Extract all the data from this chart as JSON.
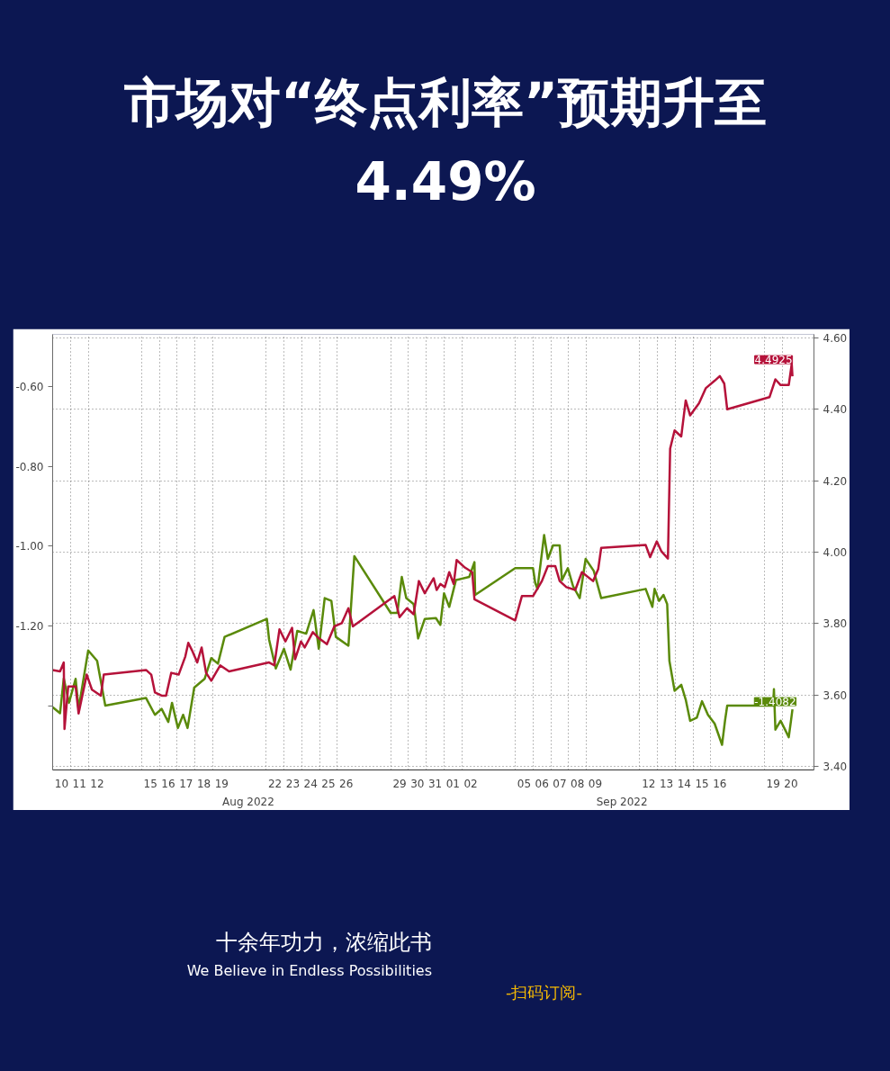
{
  "chart_data": {
    "type": "line",
    "title": "市场对“终点利率”预期升至4.49%",
    "annotations": [
      "Aug 2022",
      "Sep 2022",
      "十余年功力，浓缩此书",
      "We Believe in Endless Possibilities",
      "-扫码订阅-"
    ],
    "xlim": [
      "2022-08-10T00:00",
      "2022-09-21T19:00"
    ],
    "xticks": [
      {
        "value": "2022-08-10T12:00",
        "label": "10"
      },
      {
        "value": "2022-08-11T12:00",
        "label": "11"
      },
      {
        "value": "2022-08-12T12:00",
        "label": "12"
      },
      {
        "value": "2022-08-15T12:00",
        "label": "15"
      },
      {
        "value": "2022-08-16T12:00",
        "label": "16"
      },
      {
        "value": "2022-08-17T12:00",
        "label": "17"
      },
      {
        "value": "2022-08-18T12:00",
        "label": "18"
      },
      {
        "value": "2022-08-19T12:00",
        "label": "19"
      },
      {
        "value": "2022-08-22T12:00",
        "label": "22"
      },
      {
        "value": "2022-08-23T12:00",
        "label": "23"
      },
      {
        "value": "2022-08-24T12:00",
        "label": "24"
      },
      {
        "value": "2022-08-25T12:00",
        "label": "25"
      },
      {
        "value": "2022-08-26T12:00",
        "label": "26"
      },
      {
        "value": "2022-08-29T12:00",
        "label": "29"
      },
      {
        "value": "2022-08-30T12:00",
        "label": "30"
      },
      {
        "value": "2022-08-31T12:00",
        "label": "31"
      },
      {
        "value": "2022-09-01T12:00",
        "label": "01"
      },
      {
        "value": "2022-09-02T12:00",
        "label": "02"
      },
      {
        "value": "2022-09-05T12:00",
        "label": "05"
      },
      {
        "value": "2022-09-06T12:00",
        "label": "06"
      },
      {
        "value": "2022-09-07T12:00",
        "label": "07"
      },
      {
        "value": "2022-09-08T12:00",
        "label": "08"
      },
      {
        "value": "2022-09-09T12:00",
        "label": "09"
      },
      {
        "value": "2022-09-12T12:00",
        "label": "12"
      },
      {
        "value": "2022-09-13T12:00",
        "label": "13"
      },
      {
        "value": "2022-09-14T12:00",
        "label": "14"
      },
      {
        "value": "2022-09-15T12:00",
        "label": "15"
      },
      {
        "value": "2022-09-16T12:00",
        "label": "16"
      },
      {
        "value": "2022-09-19T12:00",
        "label": "19"
      },
      {
        "value": "2022-09-20T12:00",
        "label": "20"
      }
    ],
    "ylim": [
      -1.56,
      -0.47
    ],
    "yticks": [
      {
        "value": -0.6,
        "label": "-0.60"
      },
      {
        "value": -0.8,
        "label": "-0.80"
      },
      {
        "value": -1.0,
        "label": "-1.00"
      },
      {
        "value": -1.2,
        "label": "-1.20"
      },
      {
        "value": -1.4,
        "label": null
      }
    ],
    "y2lim": [
      3.39,
      4.61
    ],
    "y2ticks": [
      {
        "value": 3.4,
        "label": "3.40"
      },
      {
        "value": 3.6,
        "label": "3.60"
      },
      {
        "value": 3.8,
        "label": "3.80"
      },
      {
        "value": 4.0,
        "label": "4.00"
      },
      {
        "value": 4.2,
        "label": "4.20"
      },
      {
        "value": 4.4,
        "label": "4.40"
      },
      {
        "value": 4.6,
        "label": "4.60"
      }
    ],
    "grid": true,
    "line_style": "solid",
    "series": [
      {
        "color": "#5a8a0a",
        "x": [
          "2022-08-10T00:00",
          "2022-08-10T10:00",
          "2022-08-10T15:00",
          "2022-08-10T22:00",
          "2022-08-11T07:00",
          "2022-08-11T11:00",
          "2022-08-12T00:00",
          "2022-08-12T12:00",
          "2022-08-12T23:00",
          "2022-08-15T06:00",
          "2022-08-15T18:00",
          "2022-08-16T03:00",
          "2022-08-16T12:00",
          "2022-08-16T17:00",
          "2022-08-17T01:00",
          "2022-08-17T08:00",
          "2022-08-17T14:00",
          "2022-08-17T23:00",
          "2022-08-18T13:00",
          "2022-08-18T22:00",
          "2022-08-19T07:00",
          "2022-08-19T16:00",
          "2022-08-22T01:00",
          "2022-08-22T04:00",
          "2022-08-22T13:00",
          "2022-08-23T00:00",
          "2022-08-23T09:00",
          "2022-08-23T18:00",
          "2022-08-24T06:00",
          "2022-08-24T16:00",
          "2022-08-24T23:00",
          "2022-08-25T07:00",
          "2022-08-25T16:00",
          "2022-08-25T22:00",
          "2022-08-26T15:00",
          "2022-08-26T23:00",
          "2022-08-29T00:00",
          "2022-08-29T09:00",
          "2022-08-29T15:00",
          "2022-08-29T21:00",
          "2022-08-30T07:00",
          "2022-08-30T13:00",
          "2022-08-30T22:00",
          "2022-08-31T13:00",
          "2022-08-31T19:00",
          "2022-09-01T00:00",
          "2022-09-01T07:00",
          "2022-09-01T16:00",
          "2022-09-02T10:00",
          "2022-09-02T17:00",
          "2022-09-02T18:00",
          "2022-09-05T00:00",
          "2022-09-06T00:00",
          "2022-09-06T03:00",
          "2022-09-06T06:00",
          "2022-09-06T15:00",
          "2022-09-06T20:00",
          "2022-09-07T03:00",
          "2022-09-07T12:00",
          "2022-09-07T15:00",
          "2022-09-07T23:00",
          "2022-09-08T06:00",
          "2022-09-08T15:00",
          "2022-09-08T23:00",
          "2022-09-09T10:00",
          "2022-09-09T20:00",
          "2022-09-12T08:00",
          "2022-09-12T17:00",
          "2022-09-12T20:00",
          "2022-09-13T02:00",
          "2022-09-13T08:00",
          "2022-09-13T13:00",
          "2022-09-13T16:00",
          "2022-09-13T23:00",
          "2022-09-14T08:00",
          "2022-09-14T14:00",
          "2022-09-14T20:00",
          "2022-09-15T05:00",
          "2022-09-15T12:00",
          "2022-09-15T20:00",
          "2022-09-16T05:00",
          "2022-09-16T15:00",
          "2022-09-16T19:00",
          "2022-09-16T22:00",
          "2022-09-19T12:00",
          "2022-09-19T13:00",
          "2022-09-19T15:00",
          "2022-09-19T22:00",
          "2022-09-20T04:00",
          "2022-09-20T09:00",
          "2022-09-20T12:00",
          "2022-09-20T14:00"
        ],
        "values": [
          -1.403,
          -1.418,
          -1.331,
          -1.392,
          -1.332,
          -1.407,
          -1.261,
          -1.287,
          -1.399,
          -1.38,
          -1.422,
          -1.407,
          -1.44,
          -1.392,
          -1.455,
          -1.422,
          -1.455,
          -1.354,
          -1.332,
          -1.28,
          -1.294,
          -1.227,
          -1.182,
          -1.234,
          -1.306,
          -1.257,
          -1.309,
          -1.212,
          -1.219,
          -1.16,
          -1.257,
          -1.13,
          -1.137,
          -1.227,
          -1.249,
          -1.025,
          -1.167,
          -1.167,
          -1.077,
          -1.13,
          -1.145,
          -1.231,
          -1.182,
          -1.18,
          -1.197,
          -1.118,
          -1.152,
          -1.085,
          -1.077,
          -1.04,
          -1.122,
          -1.055,
          -1.055,
          -1.092,
          -1.107,
          -0.972,
          -1.032,
          -0.998,
          -0.998,
          -1.085,
          -1.055,
          -1.1,
          -1.13,
          -1.032,
          -1.062,
          -1.13,
          -1.107,
          -1.152,
          -1.107,
          -1.137,
          -1.122,
          -1.145,
          -1.287,
          -1.362,
          -1.347,
          -1.384,
          -1.437,
          -1.429,
          -1.388,
          -1.422,
          -1.444,
          -1.497,
          -1.437,
          -1.399,
          -1.399,
          -1.358,
          -1.459,
          -1.437,
          -1.459,
          -1.478,
          -1.437,
          -1.4082
        ],
        "value_labels": [
          null,
          null,
          null,
          null,
          null,
          null,
          null,
          null,
          null,
          null,
          null,
          null,
          null,
          null,
          null,
          null,
          null,
          null,
          null,
          null,
          null,
          null,
          null,
          null,
          null,
          null,
          null,
          null,
          null,
          null,
          null,
          null,
          null,
          null,
          null,
          null,
          null,
          null,
          null,
          null,
          null,
          null,
          null,
          null,
          null,
          null,
          null,
          null,
          null,
          null,
          null,
          null,
          null,
          null,
          null,
          null,
          null,
          null,
          null,
          null,
          null,
          null,
          null,
          null,
          null,
          null,
          null,
          null,
          null,
          null,
          null,
          null,
          null,
          null,
          null,
          null,
          null,
          null,
          null,
          null,
          null,
          null,
          null,
          null,
          null,
          null,
          null,
          null,
          null,
          null,
          null,
          "-1.4082"
        ]
      },
      {
        "color": "#b5123a",
        "axis": "y2",
        "x": [
          "2022-08-10T00:00",
          "2022-08-10T10:00",
          "2022-08-10T15:00",
          "2022-08-10T16:00",
          "2022-08-10T21:00",
          "2022-08-11T07:00",
          "2022-08-11T11:00",
          "2022-08-11T22:00",
          "2022-08-12T05:00",
          "2022-08-12T17:00",
          "2022-08-12T21:00",
          "2022-08-15T06:00",
          "2022-08-15T13:00",
          "2022-08-15T18:00",
          "2022-08-16T03:00",
          "2022-08-16T09:00",
          "2022-08-16T16:00",
          "2022-08-17T02:00",
          "2022-08-17T11:00",
          "2022-08-17T15:00",
          "2022-08-17T20:00",
          "2022-08-18T03:00",
          "2022-08-18T09:00",
          "2022-08-18T15:00",
          "2022-08-18T22:00",
          "2022-08-19T10:00",
          "2022-08-19T22:00",
          "2022-08-22T04:00",
          "2022-08-22T11:00",
          "2022-08-22T18:00",
          "2022-08-23T02:00",
          "2022-08-23T11:00",
          "2022-08-23T15:00",
          "2022-08-23T23:00",
          "2022-08-24T04:00",
          "2022-08-24T15:00",
          "2022-08-24T23:00",
          "2022-08-25T10:00",
          "2022-08-25T20:00",
          "2022-08-26T06:00",
          "2022-08-26T15:00",
          "2022-08-26T21:00",
          "2022-08-29T05:00",
          "2022-08-29T12:00",
          "2022-08-29T22:00",
          "2022-08-30T07:00",
          "2022-08-30T14:00",
          "2022-08-30T22:00",
          "2022-08-31T10:00",
          "2022-08-31T14:00",
          "2022-08-31T19:00",
          "2022-09-01T01:00",
          "2022-09-01T07:00",
          "2022-09-01T13:00",
          "2022-09-01T17:00",
          "2022-09-02T04:00",
          "2022-09-02T14:00",
          "2022-09-02T17:00",
          "2022-09-05T00:00",
          "2022-09-05T09:00",
          "2022-09-06T00:00",
          "2022-09-06T12:00",
          "2022-09-06T20:00",
          "2022-09-07T06:00",
          "2022-09-07T12:00",
          "2022-09-07T21:00",
          "2022-09-08T09:00",
          "2022-09-08T18:00",
          "2022-09-09T09:00",
          "2022-09-09T16:00",
          "2022-09-09T20:00",
          "2022-09-12T08:00",
          "2022-09-12T14:00",
          "2022-09-12T23:00",
          "2022-09-13T05:00",
          "2022-09-13T14:00",
          "2022-09-13T17:00",
          "2022-09-13T23:00",
          "2022-09-14T08:00",
          "2022-09-14T14:00",
          "2022-09-14T20:00",
          "2022-09-15T08:00",
          "2022-09-15T17:00",
          "2022-09-16T05:00",
          "2022-09-16T12:00",
          "2022-09-16T18:00",
          "2022-09-16T22:00",
          "2022-09-19T07:00",
          "2022-09-19T15:00",
          "2022-09-19T22:00",
          "2022-09-20T09:00",
          "2022-09-20T13:00",
          "2022-09-20T14:00"
        ],
        "values": [
          3.67,
          3.666,
          3.691,
          3.505,
          3.624,
          3.624,
          3.548,
          3.657,
          3.615,
          3.598,
          3.657,
          3.67,
          3.657,
          3.607,
          3.598,
          3.598,
          3.662,
          3.657,
          3.708,
          3.746,
          3.725,
          3.691,
          3.733,
          3.662,
          3.64,
          3.683,
          3.666,
          3.691,
          3.683,
          3.784,
          3.75,
          3.788,
          3.7,
          3.75,
          3.733,
          3.776,
          3.759,
          3.742,
          3.792,
          3.801,
          3.843,
          3.792,
          3.877,
          3.818,
          3.843,
          3.826,
          3.919,
          3.885,
          3.927,
          3.894,
          3.911,
          3.902,
          3.944,
          3.911,
          3.978,
          3.957,
          3.944,
          3.868,
          3.809,
          3.877,
          3.877,
          3.919,
          3.961,
          3.961,
          3.919,
          3.902,
          3.894,
          3.944,
          3.919,
          3.953,
          4.012,
          4.02,
          3.986,
          4.03,
          4.003,
          3.982,
          4.29,
          4.341,
          4.324,
          4.425,
          4.383,
          4.417,
          4.459,
          4.48,
          4.493,
          4.472,
          4.4,
          4.434,
          4.484,
          4.468,
          4.468,
          4.527,
          4.4925
        ],
        "value_labels": [
          null,
          null,
          null,
          null,
          null,
          null,
          null,
          null,
          null,
          null,
          null,
          null,
          null,
          null,
          null,
          null,
          null,
          null,
          null,
          null,
          null,
          null,
          null,
          null,
          null,
          null,
          null,
          null,
          null,
          null,
          null,
          null,
          null,
          null,
          null,
          null,
          null,
          null,
          null,
          null,
          null,
          null,
          null,
          null,
          null,
          null,
          null,
          null,
          null,
          null,
          null,
          null,
          null,
          null,
          null,
          null,
          null,
          null,
          null,
          null,
          null,
          null,
          null,
          null,
          null,
          null,
          null,
          null,
          null,
          null,
          null,
          null,
          null,
          null,
          null,
          null,
          null,
          null,
          null,
          null,
          null,
          null,
          null,
          null,
          null,
          null,
          null,
          null,
          null,
          null,
          null,
          null,
          "4.4925"
        ]
      }
    ]
  }
}
